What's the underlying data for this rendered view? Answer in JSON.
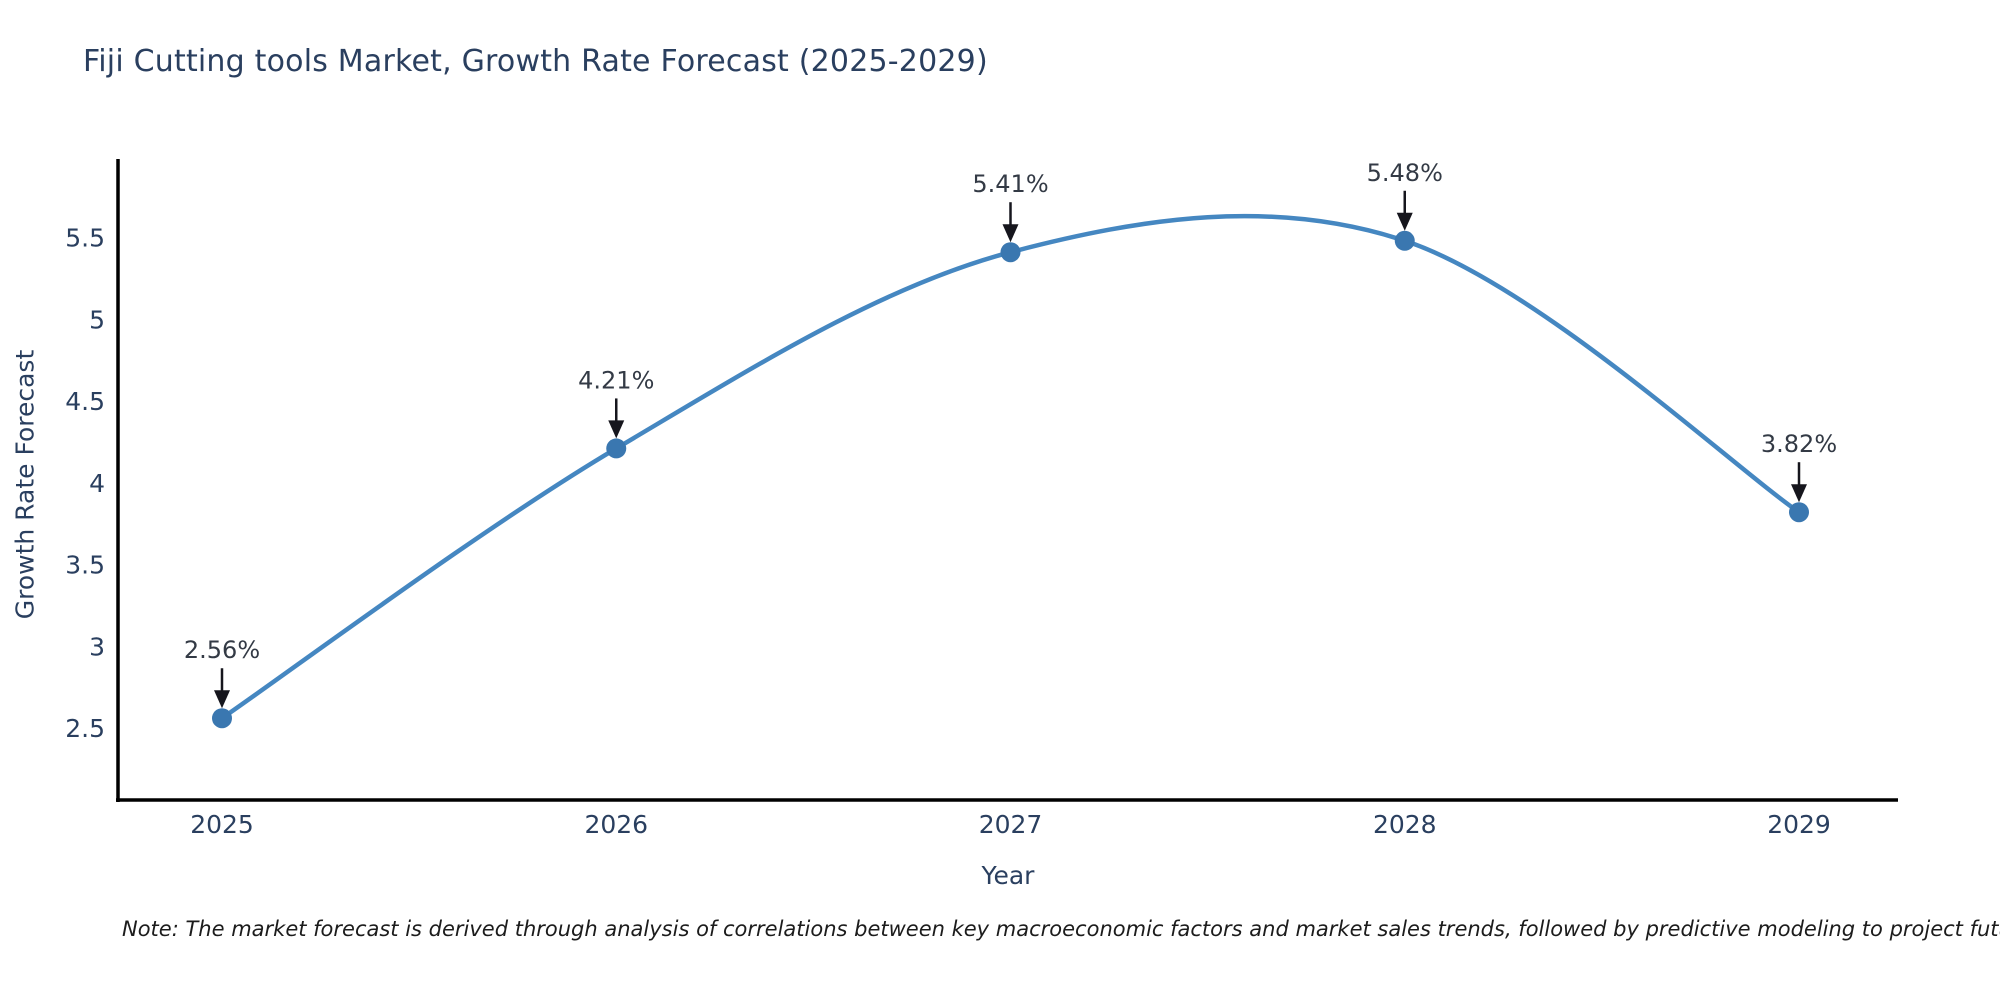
{
  "note": "Note: The market forecast is derived through analysis of correlations between key macroeconomic factors and market sales trends, followed by predictive modeling to project future sales",
  "chart_data": {
    "type": "line",
    "title": "Fiji Cutting tools Market, Growth Rate Forecast (2025-2029)",
    "xlabel": "Year",
    "ylabel": "Growth Rate Forecast",
    "categories": [
      "2025",
      "2026",
      "2027",
      "2028",
      "2029"
    ],
    "values": [
      2.56,
      4.21,
      5.41,
      5.48,
      3.82
    ],
    "point_labels": [
      "2.56%",
      "4.21%",
      "5.41%",
      "5.48%",
      "3.82%"
    ],
    "ytick_labels": [
      "2.5",
      "3",
      "3.5",
      "4",
      "4.5",
      "5",
      "5.5"
    ],
    "ytick_values": [
      2.5,
      3.0,
      3.5,
      4.0,
      4.5,
      5.0,
      5.5
    ],
    "ylim": [
      2.06,
      5.98
    ],
    "line_shape": "spline",
    "grid": false,
    "legend_position": "none",
    "annotation_arrows": "down-to-point",
    "colors": {
      "line": "#4587c1",
      "marker": "#3a77b0",
      "axis_line": "#000000",
      "tick_text": "#2a3f5f",
      "title_text": "#2a3f5f",
      "annotation_text": "#333a45",
      "arrow": "#16161d",
      "note_text": "#1c1c1c",
      "background": "#ffffff"
    }
  }
}
